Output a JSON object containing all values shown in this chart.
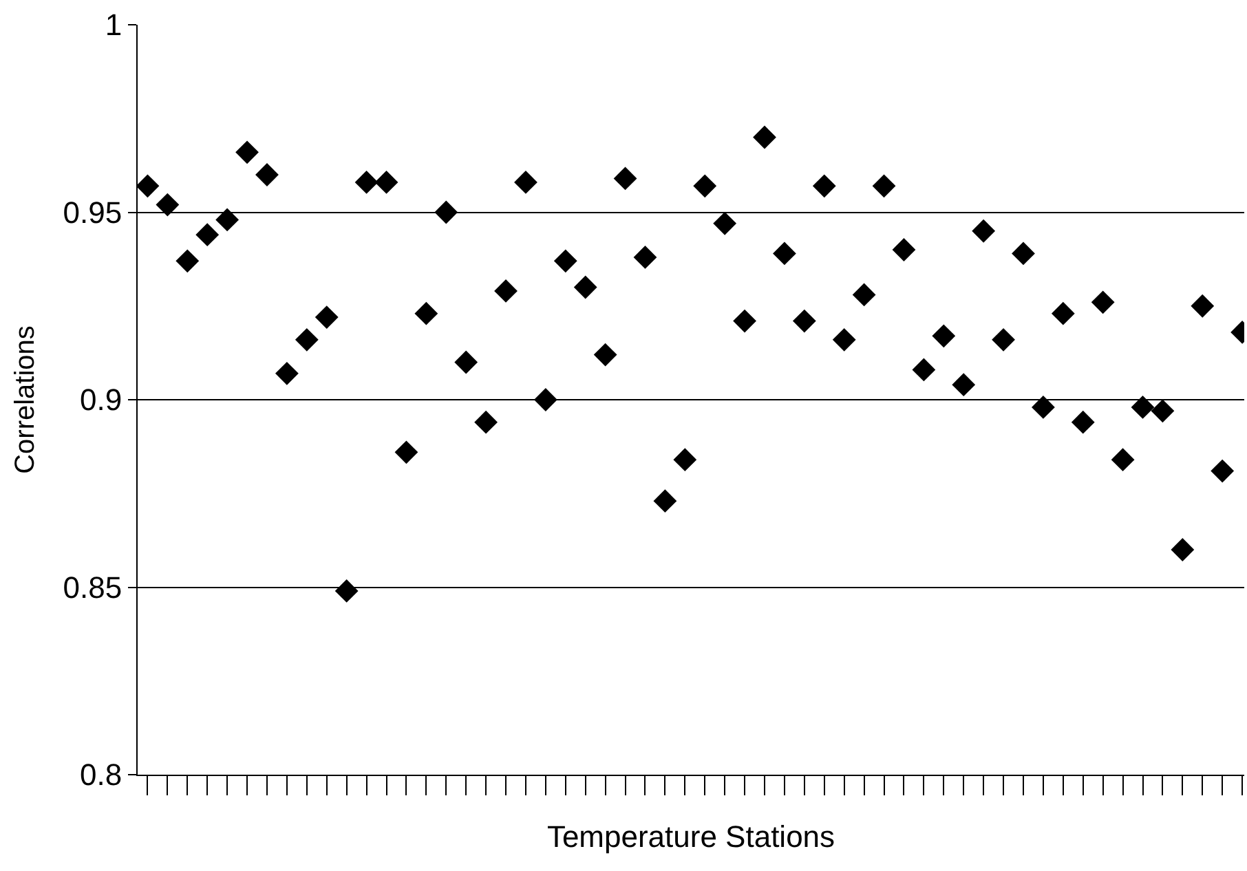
{
  "chart_data": {
    "type": "scatter",
    "xlabel": "Temperature Stations",
    "ylabel": "Correlations",
    "categories": [
      null,
      null,
      null,
      null,
      null,
      null,
      null,
      null,
      null,
      null,
      null,
      null,
      null,
      null,
      null,
      null,
      null,
      null,
      null,
      null,
      null,
      null,
      null,
      null,
      null,
      null,
      null,
      null,
      null,
      null,
      null,
      null,
      null,
      null,
      null,
      null,
      null,
      null,
      null,
      null,
      null,
      null,
      null,
      null,
      null,
      null,
      null,
      null,
      null,
      null,
      null,
      null,
      null,
      null,
      null,
      null
    ],
    "series": [
      {
        "color": "#000000",
        "values": [
          0.957,
          0.952,
          0.937,
          0.944,
          0.948,
          0.966,
          0.96,
          0.907,
          0.916,
          0.922,
          0.849,
          0.958,
          0.958,
          0.886,
          0.923,
          0.95,
          0.91,
          0.894,
          0.929,
          0.958,
          0.9,
          0.937,
          0.93,
          0.912,
          0.959,
          0.938,
          0.873,
          0.884,
          0.957,
          0.947,
          0.921,
          0.97,
          0.939,
          0.921,
          0.957,
          0.916,
          0.928,
          0.957,
          0.94,
          0.908,
          0.917,
          0.904,
          0.945,
          0.916,
          0.939,
          0.898,
          0.923,
          0.894,
          0.926,
          0.884,
          0.898,
          0.897,
          0.86,
          0.925,
          0.881,
          0.918
        ]
      }
    ],
    "ylim": [
      0.8,
      1
    ],
    "yticks": [
      0.8,
      0.85,
      0.9,
      0.95,
      1
    ],
    "grid": "y",
    "marker": "diamond"
  }
}
